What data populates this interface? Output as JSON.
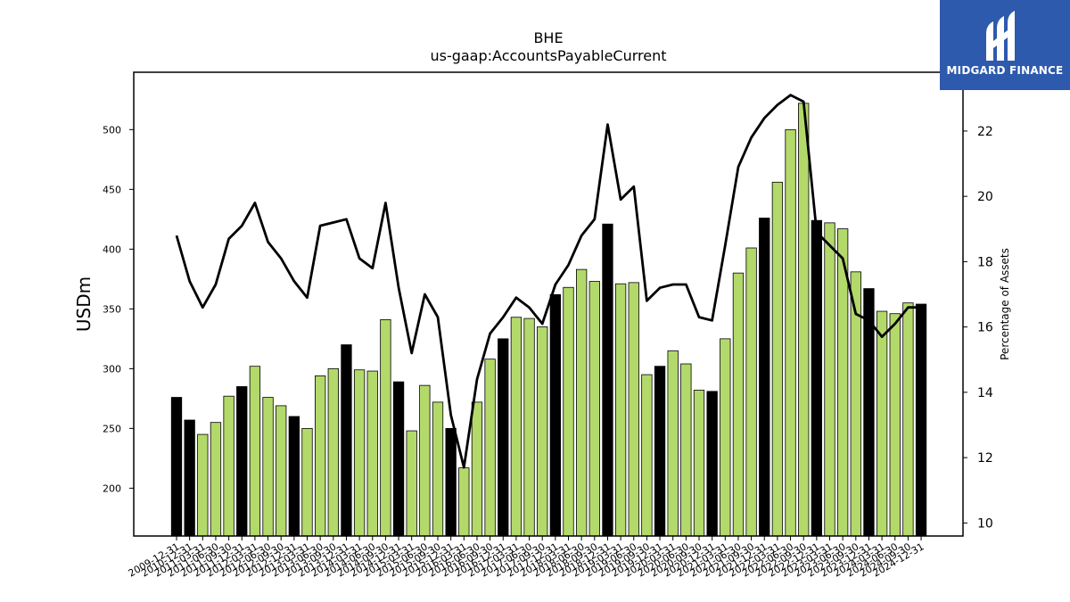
{
  "chart_data": {
    "type": "bar",
    "title": "BHE",
    "subtitle": "us-gaap:AccountsPayableCurrent",
    "ylabel": "USDm",
    "ylabel_right": "Percentage of Assets",
    "ylim": [
      160,
      548
    ],
    "ylim_right": [
      9.6,
      23.8
    ],
    "yticks": [
      200,
      250,
      300,
      350,
      400,
      450,
      500
    ],
    "yticks_right": [
      10,
      12,
      14,
      16,
      18,
      20,
      22
    ],
    "categories": [
      "2009-12-31",
      "2010-12-31",
      "2011-03-31",
      "2011-06-30",
      "2011-09-30",
      "2011-12-31",
      "2012-03-31",
      "2012-06-30",
      "2012-09-30",
      "2012-12-31",
      "2013-03-31",
      "2013-06-30",
      "2013-09-30",
      "2013-12-31",
      "2014-03-31",
      "2014-06-30",
      "2014-09-30",
      "2014-12-31",
      "2015-03-31",
      "2015-06-30",
      "2015-09-30",
      "2015-12-31",
      "2016-03-31",
      "2016-06-30",
      "2016-09-30",
      "2016-12-31",
      "2017-03-31",
      "2017-06-30",
      "2017-09-30",
      "2017-12-31",
      "2018-03-31",
      "2018-06-30",
      "2018-09-30",
      "2018-12-31",
      "2019-03-31",
      "2019-06-30",
      "2019-09-30",
      "2019-12-31",
      "2020-03-31",
      "2020-06-30",
      "2020-09-30",
      "2020-12-31",
      "2021-03-31",
      "2021-06-30",
      "2021-09-30",
      "2021-12-31",
      "2022-03-31",
      "2022-06-30",
      "2022-09-30",
      "2022-12-31",
      "2023-03-31",
      "2023-06-30",
      "2023-09-30",
      "2023-12-31",
      "2024-03-31",
      "2024-06-30",
      "2024-09-30",
      "2024-12-31"
    ],
    "series": [
      {
        "name": "",
        "type": "bar",
        "values": [
          276,
          257,
          245,
          255,
          277,
          285,
          302,
          276,
          269,
          260,
          250,
          294,
          300,
          320,
          299,
          298,
          341,
          289,
          248,
          286,
          272,
          250,
          217,
          272,
          308,
          325,
          343,
          342,
          335,
          362,
          368,
          383,
          373,
          421,
          371,
          372,
          295,
          302,
          315,
          304,
          282,
          281,
          325,
          380,
          401,
          426,
          456,
          500,
          522,
          424,
          422,
          417,
          381,
          367,
          348,
          346,
          355,
          354
        ],
        "colors": [
          "#000000",
          "#000000",
          "#b3d96b",
          "#b3d96b",
          "#b3d96b",
          "#000000",
          "#b3d96b",
          "#b3d96b",
          "#b3d96b",
          "#000000",
          "#b3d96b",
          "#b3d96b",
          "#b3d96b",
          "#000000",
          "#b3d96b",
          "#b3d96b",
          "#b3d96b",
          "#000000",
          "#b3d96b",
          "#b3d96b",
          "#b3d96b",
          "#000000",
          "#b3d96b",
          "#b3d96b",
          "#b3d96b",
          "#000000",
          "#b3d96b",
          "#b3d96b",
          "#b3d96b",
          "#000000",
          "#b3d96b",
          "#b3d96b",
          "#b3d96b",
          "#000000",
          "#b3d96b",
          "#b3d96b",
          "#b3d96b",
          "#000000",
          "#b3d96b",
          "#b3d96b",
          "#b3d96b",
          "#000000",
          "#b3d96b",
          "#b3d96b",
          "#b3d96b",
          "#000000",
          "#b3d96b",
          "#b3d96b",
          "#b3d96b",
          "#000000",
          "#b3d96b",
          "#b3d96b",
          "#b3d96b",
          "#000000",
          "#b3d96b",
          "#b3d96b",
          "#b3d96b",
          "#000000"
        ]
      },
      {
        "name": "",
        "type": "line",
        "axis": "right",
        "color": "#000000",
        "values": [
          18.8,
          17.4,
          16.6,
          17.3,
          18.7,
          19.1,
          19.8,
          18.6,
          18.1,
          17.4,
          16.9,
          19.1,
          19.2,
          19.3,
          18.1,
          17.8,
          19.8,
          17.2,
          15.2,
          17.0,
          16.3,
          13.3,
          11.7,
          14.4,
          15.8,
          16.3,
          16.9,
          16.6,
          16.1,
          17.3,
          17.9,
          18.8,
          19.3,
          22.2,
          19.9,
          20.3,
          16.8,
          17.2,
          17.3,
          17.3,
          16.3,
          16.2,
          18.5,
          20.9,
          21.8,
          22.4,
          22.8,
          23.1,
          22.9,
          18.9,
          18.5,
          18.1,
          16.4,
          16.2,
          15.7,
          16.1,
          16.6,
          16.6
        ]
      }
    ],
    "grid": false,
    "legend": "none"
  },
  "logo": {
    "text": "MIDGARD FINANCE",
    "color": "#2e5aad"
  },
  "colors": {
    "bar_highlight": "#000000",
    "bar_default": "#b3d96b",
    "line": "#000000"
  }
}
